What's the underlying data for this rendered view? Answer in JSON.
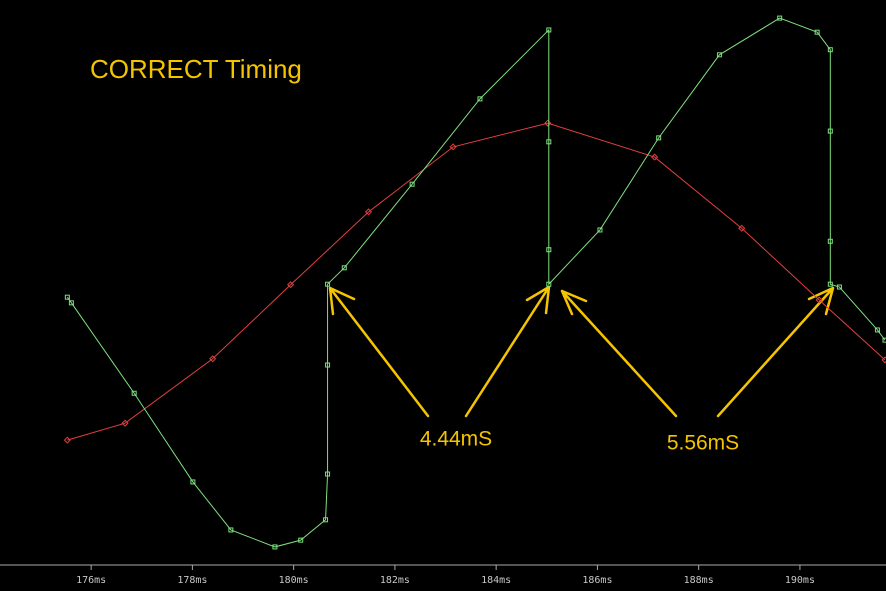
{
  "chart_data": {
    "type": "line",
    "title": "CORRECT Timing",
    "annotations": [
      "4.44mS",
      "5.56mS"
    ],
    "xlim": [
      174.2,
      191.7
    ],
    "ylim": [
      0,
      100
    ],
    "xticks": [
      {
        "value": 176,
        "label": "176ms"
      },
      {
        "value": 178,
        "label": "178ms"
      },
      {
        "value": 180,
        "label": "180ms"
      },
      {
        "value": 182,
        "label": "182ms"
      },
      {
        "value": 184,
        "label": "184ms"
      },
      {
        "value": 186,
        "label": "186ms"
      },
      {
        "value": 188,
        "label": "188ms"
      },
      {
        "value": 190,
        "label": "190ms"
      }
    ],
    "series": [
      {
        "color": "#e04040",
        "x": [
          175.53,
          176.67,
          178.4,
          179.94,
          181.48,
          183.15,
          185.02,
          187.13,
          188.85,
          190.38,
          191.68
        ],
        "values": [
          22.1,
          25.1,
          36.5,
          49.6,
          62.5,
          74.0,
          78.2,
          72.2,
          59.6,
          46.9,
          36.3
        ]
      },
      {
        "color": "#7fe07f",
        "x": [
          175.53,
          175.61,
          176.85,
          178.01,
          178.76,
          179.63,
          180.14,
          180.63,
          180.67,
          180.67,
          180.67,
          181.0,
          182.34,
          183.68,
          185.04,
          185.04,
          185.04,
          185.04,
          186.05,
          187.21,
          188.41,
          189.6,
          190.34,
          190.6,
          190.6,
          190.6,
          190.6,
          190.78,
          191.53,
          191.68
        ],
        "values": [
          47.4,
          46.4,
          30.4,
          14.7,
          6.2,
          3.2,
          4.4,
          8.0,
          16.1,
          35.4,
          49.7,
          52.6,
          67.4,
          82.5,
          94.7,
          74.9,
          55.8,
          49.7,
          59.3,
          75.6,
          90.3,
          96.8,
          94.3,
          91.2,
          76.8,
          57.3,
          49.7,
          49.2,
          41.6,
          39.8
        ]
      }
    ]
  }
}
